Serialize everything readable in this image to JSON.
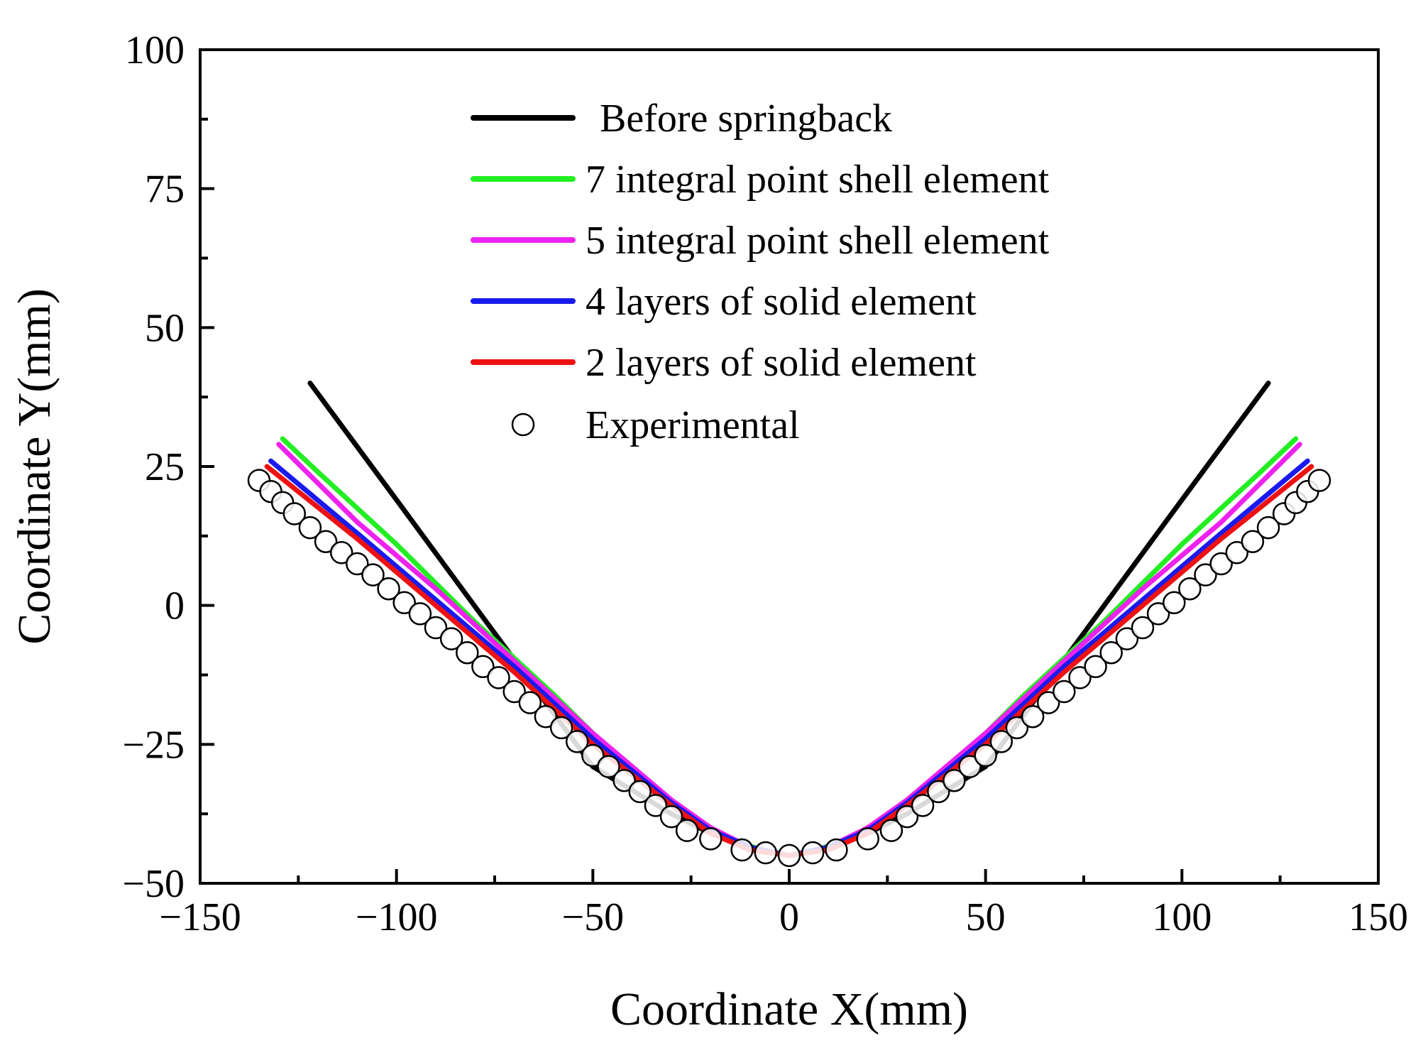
{
  "chart_data": {
    "type": "line",
    "title": "",
    "xlabel": "Coordinate X(mm)",
    "ylabel": "Coordinate Y(mm)",
    "xlim": [
      -150,
      150
    ],
    "ylim": [
      -50,
      100
    ],
    "xticks": [
      -150,
      -100,
      -50,
      0,
      50,
      100,
      150
    ],
    "yticks": [
      -50,
      -25,
      0,
      25,
      50,
      75,
      100
    ],
    "xtick_labels": [
      "−150",
      "−100",
      "−50",
      "0",
      "50",
      "100",
      "150"
    ],
    "ytick_labels": [
      "−50",
      "−25",
      "0",
      "25",
      "50",
      "75",
      "100"
    ],
    "grid": false,
    "legend_position": "top-center",
    "series": [
      {
        "name": "Before springback",
        "color": "#000000",
        "style": "line",
        "x": [
          -122,
          -100,
          -75,
          -50,
          -30,
          -20,
          -10,
          0,
          10,
          20,
          30,
          50,
          75,
          100,
          122
        ],
        "y": [
          40,
          19,
          -5,
          -29,
          -37.5,
          -41,
          -43.5,
          -45,
          -43.5,
          -41,
          -37.5,
          -29,
          -5,
          19,
          40
        ]
      },
      {
        "name": "7 integral point shell element",
        "color": "#22ee22",
        "style": "line",
        "x": [
          -129,
          -120,
          -100,
          -80,
          -60,
          -40,
          -25,
          -15,
          -5,
          0,
          5,
          15,
          25,
          40,
          60,
          80,
          100,
          120,
          129
        ],
        "y": [
          30,
          24,
          11,
          -3,
          -16,
          -30,
          -38,
          -42,
          -44.5,
          -45,
          -44.5,
          -42,
          -38,
          -30,
          -16,
          -3,
          11,
          24,
          30
        ]
      },
      {
        "name": "5 integral point shell element",
        "color": "#ee22ee",
        "style": "line",
        "x": [
          -130,
          -110,
          -90,
          -70,
          -50,
          -30,
          -20,
          -10,
          0,
          10,
          20,
          30,
          50,
          70,
          90,
          110,
          130
        ],
        "y": [
          29,
          15,
          3,
          -10,
          -23,
          -35,
          -40,
          -43.5,
          -45,
          -43.5,
          -40,
          -35,
          -23,
          -10,
          3,
          15,
          29
        ]
      },
      {
        "name": "4 layers of solid element",
        "color": "#1a1aee",
        "style": "line",
        "x": [
          -132,
          -110,
          -90,
          -70,
          -50,
          -30,
          -20,
          -10,
          0,
          10,
          20,
          30,
          50,
          70,
          90,
          110,
          132
        ],
        "y": [
          26,
          13,
          1,
          -11,
          -24,
          -35.5,
          -40.5,
          -43.5,
          -45,
          -43.5,
          -40.5,
          -35.5,
          -24,
          -11,
          1,
          13,
          26
        ]
      },
      {
        "name": "2 layers of solid element",
        "color": "#ee1111",
        "style": "line",
        "x": [
          -133,
          -110,
          -90,
          -70,
          -50,
          -30,
          -20,
          -10,
          0,
          10,
          20,
          30,
          50,
          70,
          90,
          110,
          133
        ],
        "y": [
          25,
          12,
          0,
          -12,
          -25,
          -36,
          -41,
          -44,
          -45,
          -44,
          -41,
          -36,
          -25,
          -12,
          0,
          12,
          25
        ]
      },
      {
        "name": "Experimental",
        "color": "#000000",
        "style": "markers",
        "x": [
          -135,
          -132,
          -129,
          -126,
          -122,
          -118,
          -114,
          -110,
          -106,
          -102,
          -98,
          -94,
          -90,
          -86,
          -82,
          -78,
          -74,
          -70,
          -66,
          -62,
          -58,
          -54,
          -50,
          -46,
          -42,
          -38,
          -34,
          -30,
          -26,
          -20,
          -12,
          -6,
          0,
          6,
          12,
          20,
          26,
          30,
          34,
          38,
          42,
          46,
          50,
          54,
          58,
          62,
          66,
          70,
          74,
          78,
          82,
          86,
          90,
          94,
          98,
          102,
          106,
          110,
          114,
          118,
          122,
          126,
          129,
          132,
          135
        ],
        "y": [
          22.5,
          20.5,
          18.5,
          16.5,
          14,
          11.5,
          9.5,
          7.5,
          5.5,
          3,
          0.5,
          -1.5,
          -4,
          -6,
          -8.5,
          -11,
          -13,
          -15.5,
          -17.5,
          -20,
          -22,
          -24.5,
          -27,
          -29,
          -31.5,
          -33.5,
          -36,
          -38,
          -40.5,
          -42,
          -44,
          -44.5,
          -45,
          -44.5,
          -44,
          -42,
          -40.5,
          -38,
          -36,
          -33.5,
          -31.5,
          -29,
          -27,
          -24.5,
          -22,
          -20,
          -17.5,
          -15.5,
          -13,
          -11,
          -8.5,
          -6,
          -4,
          -1.5,
          0.5,
          3,
          5.5,
          7.5,
          9.5,
          11.5,
          14,
          16.5,
          18.5,
          20.5,
          22.5
        ]
      }
    ]
  }
}
